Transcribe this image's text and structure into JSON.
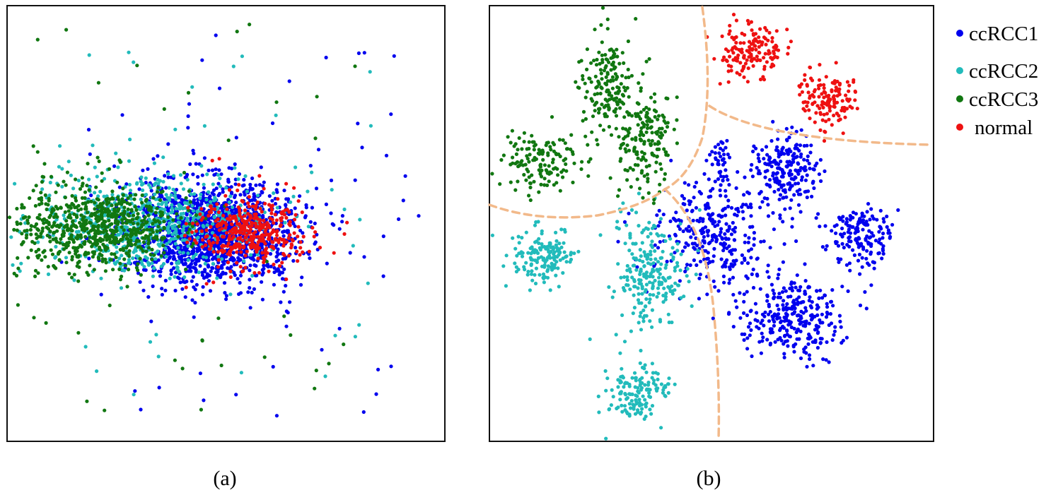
{
  "figure": {
    "panels": [
      {
        "caption": "(a)"
      },
      {
        "caption": "(b)"
      }
    ]
  },
  "legend": {
    "placement": "right-of-panel-b",
    "entries": [
      {
        "label": "ccRCC1",
        "color": "#0000ee"
      },
      {
        "label": "ccRCC2",
        "color": "#22bbbb"
      },
      {
        "label": "ccRCC3",
        "color": "#117711"
      },
      {
        "label": "normal",
        "color": "#ee1111"
      }
    ]
  },
  "chart_data": [
    {
      "type": "scatter",
      "caption": "(a)",
      "axes": "none",
      "grid": false,
      "xlim": [
        0,
        100
      ],
      "ylim": [
        0,
        100
      ],
      "series": [
        {
          "name": "ccRCC1",
          "color": "#0000ee",
          "clusters": [
            {
              "cx": 47,
              "cy": 52,
              "sx": 10,
              "sy": 6,
              "n": 1400
            }
          ],
          "outliers": {
            "xrange": [
              18,
              95
            ],
            "yrange": [
              5,
              95
            ],
            "n": 70
          }
        },
        {
          "name": "ccRCC2",
          "color": "#22bbbb",
          "clusters": [
            {
              "cx": 32,
              "cy": 50,
              "sx": 12,
              "sy": 6,
              "n": 650
            }
          ],
          "outliers": {
            "xrange": [
              10,
              85
            ],
            "yrange": [
              10,
              90
            ],
            "n": 40
          }
        },
        {
          "name": "ccRCC3",
          "color": "#117711",
          "clusters": [
            {
              "cx": 20,
              "cy": 51,
              "sx": 9,
              "sy": 5,
              "n": 700
            }
          ],
          "outliers": {
            "xrange": [
              5,
              80
            ],
            "yrange": [
              3,
              97
            ],
            "n": 45
          }
        },
        {
          "name": "normal",
          "color": "#ee1111",
          "clusters": [
            {
              "cx": 55,
              "cy": 52,
              "sx": 6,
              "sy": 4,
              "n": 380
            }
          ],
          "outliers": {
            "xrange": [
              45,
              90
            ],
            "yrange": [
              30,
              70
            ],
            "n": 8
          }
        }
      ]
    },
    {
      "type": "scatter",
      "caption": "(b)",
      "axes": "none",
      "grid": false,
      "xlim": [
        0,
        100
      ],
      "ylim": [
        0,
        100
      ],
      "boundaries": "dashed separator curves between the four classes",
      "series": [
        {
          "name": "ccRCC1",
          "color": "#0000ee",
          "clusters": [
            {
              "cx": 50,
              "cy": 52,
              "sx": 7,
              "sy": 6,
              "n": 300
            },
            {
              "cx": 67,
              "cy": 38,
              "sx": 3.5,
              "sy": 4.5,
              "n": 200
            },
            {
              "cx": 84,
              "cy": 53,
              "sx": 3.5,
              "sy": 3.5,
              "n": 160
            },
            {
              "cx": 68,
              "cy": 71,
              "sx": 6,
              "sy": 5,
              "n": 300
            },
            {
              "cx": 52,
              "cy": 35,
              "sx": 1,
              "sy": 3,
              "n": 40
            }
          ]
        },
        {
          "name": "ccRCC2",
          "color": "#22bbbb",
          "clusters": [
            {
              "cx": 12,
              "cy": 58,
              "sx": 3.5,
              "sy": 3.5,
              "n": 150
            },
            {
              "cx": 36,
              "cy": 62,
              "sx": 4,
              "sy": 7,
              "n": 230
            },
            {
              "cx": 33,
              "cy": 89,
              "sx": 3.5,
              "sy": 3,
              "n": 140
            }
          ]
        },
        {
          "name": "ccRCC3",
          "color": "#117711",
          "clusters": [
            {
              "cx": 26,
              "cy": 18,
              "sx": 3,
              "sy": 6,
              "n": 170
            },
            {
              "cx": 35,
              "cy": 31,
              "sx": 3,
              "sy": 6,
              "n": 170
            },
            {
              "cx": 11,
              "cy": 36,
              "sx": 4.5,
              "sy": 3.5,
              "n": 140
            }
          ]
        },
        {
          "name": "normal",
          "color": "#ee1111",
          "clusters": [
            {
              "cx": 59,
              "cy": 10,
              "sx": 3.5,
              "sy": 3.5,
              "n": 150
            },
            {
              "cx": 77,
              "cy": 21,
              "sx": 3.5,
              "sy": 3,
              "n": 140
            }
          ]
        }
      ]
    }
  ]
}
